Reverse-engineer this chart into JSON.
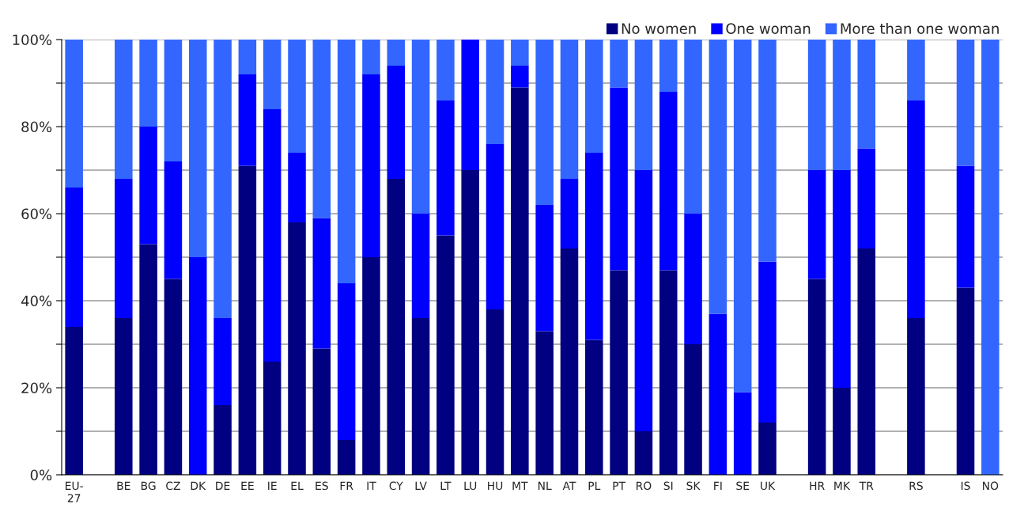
{
  "chart_data": {
    "type": "bar",
    "stacked": true,
    "categories": [
      "EU-\n27",
      null,
      "BE",
      "BG",
      "CZ",
      "DK",
      "DE",
      "EE",
      "IE",
      "EL",
      "ES",
      "FR",
      "IT",
      "CY",
      "LV",
      "LT",
      "LU",
      "HU",
      "MT",
      "NL",
      "AT",
      "PL",
      "PT",
      "RO",
      "SI",
      "SK",
      "FI",
      "SE",
      "UK",
      null,
      "HR",
      "MK",
      "TR",
      null,
      "RS",
      null,
      "IS",
      "NO"
    ],
    "series": [
      {
        "name": "No women",
        "color": "#000080",
        "values": [
          34,
          null,
          36,
          53,
          45,
          0,
          16,
          71,
          26,
          58,
          29,
          8,
          50,
          68,
          36,
          55,
          70,
          38,
          89,
          33,
          52,
          31,
          47,
          10,
          47,
          30,
          0,
          0,
          12,
          null,
          45,
          20,
          52,
          null,
          36,
          null,
          43,
          0
        ]
      },
      {
        "name": "One woman",
        "color": "#0000ff",
        "values": [
          32,
          null,
          32,
          27,
          27,
          50,
          20,
          21,
          58,
          16,
          30,
          36,
          42,
          26,
          24,
          31,
          30,
          38,
          5,
          29,
          16,
          43,
          42,
          60,
          41,
          30,
          37,
          19,
          37,
          null,
          25,
          50,
          23,
          null,
          50,
          null,
          28,
          0
        ]
      },
      {
        "name": "More than one woman",
        "color": "#3366ff",
        "values": [
          34,
          null,
          32,
          20,
          28,
          50,
          64,
          8,
          16,
          26,
          41,
          56,
          8,
          6,
          40,
          14,
          0,
          24,
          6,
          38,
          32,
          26,
          11,
          30,
          12,
          40,
          63,
          81,
          51,
          null,
          30,
          30,
          25,
          null,
          14,
          null,
          29,
          100
        ]
      }
    ],
    "ylim": [
      0,
      100
    ],
    "yticks": [
      {
        "value": 0,
        "label": "0%"
      },
      {
        "value": 10,
        "label": null
      },
      {
        "value": 20,
        "label": "20%"
      },
      {
        "value": 30,
        "label": null
      },
      {
        "value": 40,
        "label": "40%"
      },
      {
        "value": 50,
        "label": null
      },
      {
        "value": 60,
        "label": "60%"
      },
      {
        "value": 70,
        "label": null
      },
      {
        "value": 80,
        "label": "80%"
      },
      {
        "value": 90,
        "label": null
      },
      {
        "value": 100,
        "label": "100%"
      }
    ],
    "grid": "y",
    "legend": "top right"
  }
}
